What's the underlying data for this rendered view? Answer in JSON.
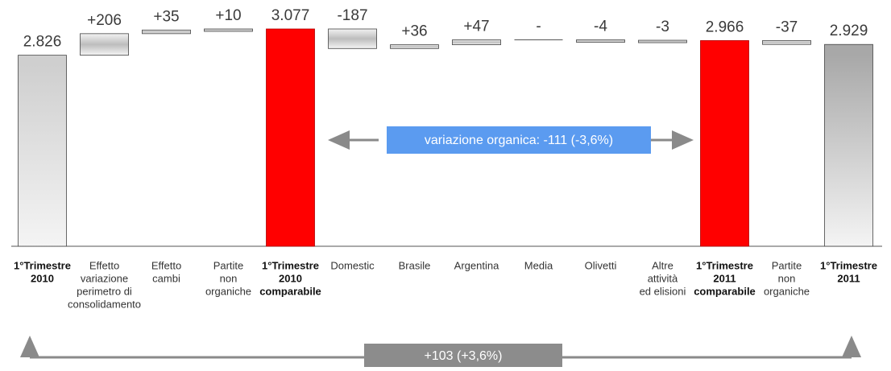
{
  "chart_data": {
    "type": "waterfall",
    "categories": [
      [
        "1°Trimestre",
        "2010"
      ],
      [
        "Effetto",
        "variazione",
        "perimetro di",
        "consolidamento"
      ],
      [
        "Effetto",
        "cambi"
      ],
      [
        "Partite",
        "non",
        "organiche"
      ],
      [
        "1°Trimestre",
        "2010",
        "comparabile"
      ],
      [
        "Domestic"
      ],
      [
        "Brasile"
      ],
      [
        "Argentina"
      ],
      [
        "Media"
      ],
      [
        "Olivetti"
      ],
      [
        "Altre",
        "attività",
        "ed elisioni"
      ],
      [
        "1°Trimestre",
        "2011",
        "comparabile"
      ],
      [
        "Partite",
        "non",
        "organiche"
      ],
      [
        "1°Trimestre",
        "2011"
      ]
    ],
    "values": [
      2826,
      206,
      35,
      10,
      3077,
      -187,
      36,
      47,
      0,
      -4,
      -3,
      2966,
      -37,
      2929
    ],
    "value_labels": [
      "2.826",
      "+206",
      "+35",
      "+10",
      "3.077",
      "-187",
      "+36",
      "+47",
      "-",
      "-4",
      "-3",
      "2.966",
      "-37",
      "2.929"
    ],
    "is_total": [
      true,
      false,
      false,
      false,
      true,
      false,
      false,
      false,
      false,
      false,
      false,
      true,
      false,
      true
    ],
    "colors": [
      "#cfcfcf",
      "#bdbdbd",
      "#bdbdbd",
      "#bdbdbd",
      "#ff0000",
      "#bdbdbd",
      "#bdbdbd",
      "#bdbdbd",
      "#bdbdbd",
      "#bdbdbd",
      "#bdbdbd",
      "#ff0000",
      "#bdbdbd",
      "#a8a8a8"
    ],
    "ylim": [
      1000,
      3200
    ],
    "annotations": [
      "variazione organica: -111 (-3,6%)",
      "+103 (+3,6%)"
    ]
  }
}
